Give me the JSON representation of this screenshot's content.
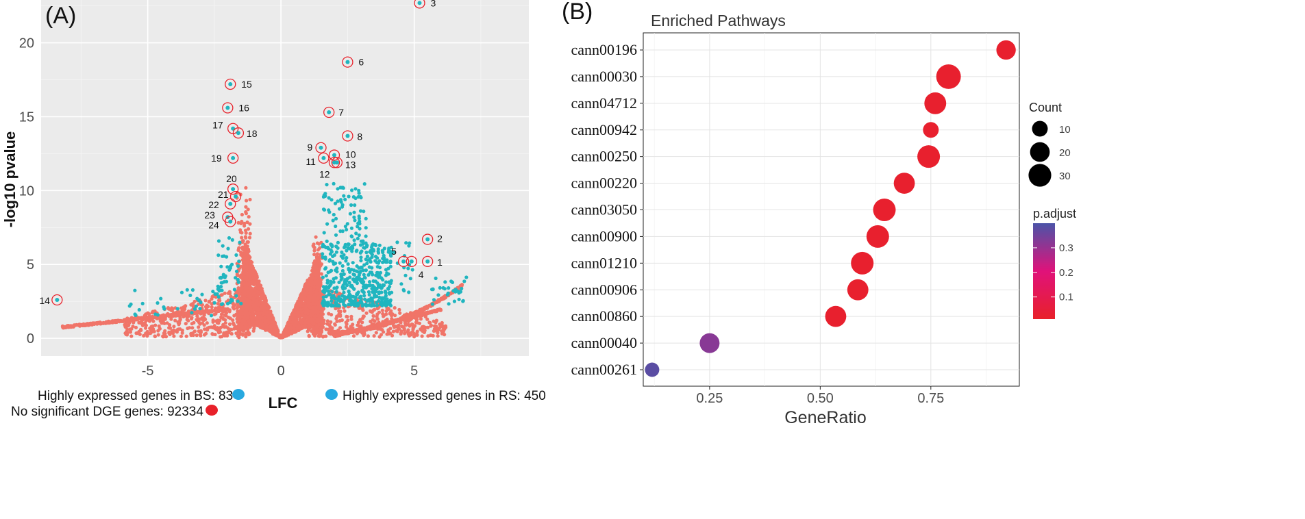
{
  "chart_data": [
    {
      "panel_label": "(A)",
      "type": "scatter",
      "title": "",
      "xlabel": "LFC",
      "ylabel": "-log10 pvalue",
      "xlim": [
        -9,
        9.3
      ],
      "ylim": [
        -1.2,
        22.9
      ],
      "xticks": [
        -5,
        0,
        5
      ],
      "yticks": [
        0,
        5,
        10,
        15,
        20
      ],
      "grid": true,
      "background": "#ebebeb",
      "series": [
        {
          "name": "Highly expressed genes in BS: 83",
          "color": "#20b5bf"
        },
        {
          "name": "Highly expressed genes in RS: 450",
          "color": "#20b5bf"
        },
        {
          "name": "No significant DGE genes: 92334",
          "color": "#f07468"
        }
      ],
      "legend": [
        {
          "label": "Highly expressed genes in BS: 83",
          "color": "#20b5bf"
        },
        {
          "label": "Highly expressed genes in RS: 450",
          "color": "#20b5bf"
        },
        {
          "label": "No significant DGE genes: 92334",
          "color": "#e8212a"
        }
      ],
      "labeled_points": [
        {
          "label": "1",
          "x": 5.5,
          "y": 5.2
        },
        {
          "label": "2",
          "x": 5.5,
          "y": 6.7
        },
        {
          "label": "3",
          "x": 5.2,
          "y": 22.7
        },
        {
          "label": "4",
          "x": 4.9,
          "y": 5.2
        },
        {
          "label": "5",
          "x": 4.6,
          "y": 5.2
        },
        {
          "label": "6",
          "x": 2.5,
          "y": 18.7
        },
        {
          "label": "7",
          "x": 1.8,
          "y": 15.3
        },
        {
          "label": "8",
          "x": 2.5,
          "y": 13.7
        },
        {
          "label": "9",
          "x": 1.5,
          "y": 12.9
        },
        {
          "label": "10",
          "x": 2.0,
          "y": 12.4
        },
        {
          "label": "11",
          "x": 1.6,
          "y": 12.2
        },
        {
          "label": "12",
          "x": 2.0,
          "y": 11.9
        },
        {
          "label": "13",
          "x": 2.1,
          "y": 11.9
        },
        {
          "label": "14",
          "x": -8.4,
          "y": 2.6
        },
        {
          "label": "15",
          "x": -1.9,
          "y": 17.2
        },
        {
          "label": "16",
          "x": -2.0,
          "y": 15.6
        },
        {
          "label": "17",
          "x": -1.8,
          "y": 14.2
        },
        {
          "label": "18",
          "x": -1.6,
          "y": 13.9
        },
        {
          "label": "19",
          "x": -1.8,
          "y": 12.2
        },
        {
          "label": "20",
          "x": -1.8,
          "y": 10.1
        },
        {
          "label": "21",
          "x": -1.7,
          "y": 9.6
        },
        {
          "label": "22",
          "x": -1.9,
          "y": 9.1
        },
        {
          "label": "23",
          "x": -2.0,
          "y": 8.2
        },
        {
          "label": "24",
          "x": -1.9,
          "y": 7.9
        }
      ]
    },
    {
      "panel_label": "(B)",
      "type": "scatter",
      "title": "Enriched Pathways",
      "xlabel": "GeneRatio",
      "ylabel": "",
      "xlim": [
        0.1,
        0.95
      ],
      "xticks": [
        0.25,
        0.5,
        0.75
      ],
      "xtick_labels": [
        "0.25",
        "0.50",
        "0.75"
      ],
      "grid": true,
      "categories": [
        "cann00196",
        "cann00030",
        "cann04712",
        "cann00942",
        "cann00250",
        "cann00220",
        "cann03050",
        "cann00900",
        "cann01210",
        "cann00906",
        "cann00860",
        "cann00040",
        "cann00261"
      ],
      "gene_ratio": [
        0.92,
        0.79,
        0.76,
        0.75,
        0.745,
        0.69,
        0.645,
        0.63,
        0.595,
        0.585,
        0.535,
        0.25,
        0.12
      ],
      "count": [
        14,
        28,
        20,
        7,
        22,
        18,
        22,
        22,
        22,
        18,
        18,
        15,
        5
      ],
      "p_adjust": [
        0.02,
        0.02,
        0.02,
        0.02,
        0.02,
        0.02,
        0.02,
        0.02,
        0.02,
        0.02,
        0.02,
        0.32,
        0.38
      ],
      "size_legend": {
        "title": "Count",
        "values": [
          10,
          20,
          30
        ]
      },
      "color_legend": {
        "title": "p.adjust",
        "ticks": [
          0.1,
          0.2,
          0.3
        ],
        "range": [
          0.01,
          0.4
        ],
        "low_color": "#e8212a",
        "mid_color": "#e0127a",
        "high_color": "#4b54a8"
      }
    }
  ]
}
